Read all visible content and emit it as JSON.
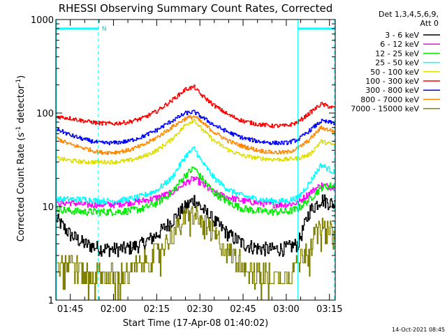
{
  "chart_data": {
    "type": "line",
    "title": "RHESSI Observing Summary Count Rates, Corrected",
    "xlabel": "Start Time (17-Apr-08 01:40:02)",
    "ylabel_main": "Corrected Count Rate (s",
    "ylabel_sup1": "-1",
    "ylabel_mid": " detector",
    "ylabel_sup2": "-1",
    "ylabel_end": ")",
    "yscale": "log",
    "ylim": [
      1,
      1000
    ],
    "xlim_minutes": [
      0,
      97
    ],
    "yticks": [
      {
        "value": 1,
        "label": "1"
      },
      {
        "value": 10,
        "label": "10"
      },
      {
        "value": 100,
        "label": "100"
      },
      {
        "value": 1000,
        "label": "1000"
      }
    ],
    "xticks": [
      {
        "minute": 5,
        "label": "01:45"
      },
      {
        "minute": 20,
        "label": "02:00"
      },
      {
        "minute": 35,
        "label": "02:15"
      },
      {
        "minute": 50,
        "label": "02:30"
      },
      {
        "minute": 65,
        "label": "02:45"
      },
      {
        "minute": 80,
        "label": "03:00"
      },
      {
        "minute": 95,
        "label": "03:15"
      }
    ],
    "legend_header": [
      "Det 1,3,4,5,6,9,",
      "Att 0"
    ],
    "legend_position": "top-right",
    "night_bars": [
      {
        "start": 0,
        "end": 15,
        "label": "N"
      },
      {
        "start": 84,
        "end": 99,
        "label": ""
      }
    ],
    "eclipse_lines_solid": [
      0,
      84
    ],
    "eclipse_lines_dashed": [
      15,
      99
    ],
    "series": [
      {
        "name": "3 - 6 keV",
        "color": "#000000",
        "x": [
          0,
          5,
          10,
          15,
          20,
          25,
          30,
          35,
          40,
          45,
          48,
          50,
          55,
          60,
          65,
          70,
          75,
          80,
          84,
          88,
          92,
          97
        ],
        "values": [
          7.5,
          5,
          4,
          3.6,
          3.5,
          3.6,
          4,
          5,
          7,
          10,
          12,
          10,
          7,
          5,
          4,
          3.6,
          3.5,
          3.6,
          4,
          9,
          12,
          10.5
        ]
      },
      {
        "name": "6 - 12 keV",
        "color": "#ff00ff",
        "x": [
          0,
          5,
          10,
          15,
          20,
          25,
          30,
          35,
          40,
          45,
          48,
          50,
          55,
          60,
          65,
          70,
          75,
          80,
          84,
          88,
          92,
          97
        ],
        "values": [
          11,
          11,
          10.5,
          10.5,
          10.5,
          11,
          11.5,
          12.5,
          14,
          18,
          20,
          18,
          14,
          12.5,
          11.5,
          11,
          10.5,
          10.5,
          11,
          14,
          17,
          16
        ]
      },
      {
        "name": "12 - 25 keV",
        "color": "#00ee00",
        "x": [
          0,
          5,
          10,
          15,
          20,
          25,
          30,
          35,
          40,
          45,
          48,
          50,
          55,
          60,
          65,
          70,
          75,
          80,
          84,
          88,
          92,
          97
        ],
        "values": [
          9.5,
          9,
          8.8,
          8.8,
          8.8,
          9,
          9.5,
          11,
          14,
          22,
          26,
          21,
          14,
          11,
          9.5,
          9,
          8.8,
          8.8,
          9.5,
          12,
          16,
          17
        ]
      },
      {
        "name": "25 - 50 keV",
        "color": "#00ffff",
        "x": [
          0,
          5,
          10,
          15,
          20,
          25,
          30,
          35,
          40,
          45,
          48,
          50,
          55,
          60,
          65,
          70,
          75,
          80,
          84,
          88,
          92,
          97
        ],
        "values": [
          12,
          12,
          12,
          11.5,
          11.5,
          12,
          13,
          15,
          20,
          35,
          42,
          32,
          20,
          15,
          13,
          12,
          11.5,
          11.5,
          12.5,
          18,
          28,
          23
        ]
      },
      {
        "name": "50 - 100 keV",
        "color": "#dddd00",
        "x": [
          0,
          5,
          10,
          15,
          20,
          25,
          30,
          35,
          40,
          45,
          48,
          50,
          55,
          60,
          65,
          70,
          75,
          80,
          84,
          88,
          92,
          97
        ],
        "values": [
          33,
          31,
          30,
          30,
          30,
          31,
          34,
          40,
          52,
          75,
          85,
          70,
          50,
          40,
          35,
          33,
          32,
          32,
          33,
          36,
          50,
          45
        ]
      },
      {
        "name": "100 - 300 keV",
        "color": "#ff0000",
        "x": [
          0,
          5,
          10,
          15,
          20,
          25,
          30,
          35,
          40,
          45,
          48,
          50,
          55,
          60,
          65,
          70,
          75,
          80,
          84,
          88,
          92,
          97
        ],
        "values": [
          92,
          88,
          82,
          78,
          77,
          80,
          88,
          105,
          135,
          180,
          190,
          160,
          120,
          95,
          82,
          76,
          73,
          73,
          80,
          100,
          125,
          112
        ]
      },
      {
        "name": "300 - 800 keV",
        "color": "#0000ff",
        "x": [
          0,
          5,
          10,
          15,
          20,
          25,
          30,
          35,
          40,
          45,
          48,
          50,
          55,
          60,
          65,
          70,
          75,
          80,
          84,
          88,
          92,
          97
        ],
        "values": [
          68,
          58,
          52,
          48,
          48,
          50,
          56,
          66,
          82,
          100,
          103,
          93,
          74,
          62,
          54,
          50,
          48,
          48,
          52,
          65,
          82,
          78
        ]
      },
      {
        "name": "800 - 7000 keV",
        "color": "#ff8800",
        "x": [
          0,
          5,
          10,
          15,
          20,
          25,
          30,
          35,
          40,
          45,
          48,
          50,
          55,
          60,
          65,
          70,
          75,
          80,
          84,
          88,
          92,
          97
        ],
        "values": [
          54,
          46,
          42,
          38,
          38,
          40,
          45,
          55,
          70,
          88,
          92,
          82,
          62,
          50,
          44,
          40,
          38,
          38,
          42,
          52,
          70,
          63
        ]
      },
      {
        "name": "7000 - 15000 keV",
        "color": "#808000",
        "x": [
          0,
          5,
          10,
          15,
          20,
          25,
          30,
          35,
          40,
          45,
          48,
          50,
          55,
          60,
          65,
          70,
          75,
          80,
          84,
          88,
          92,
          97
        ],
        "values": [
          3,
          2.5,
          2,
          1.8,
          1.8,
          2,
          2.5,
          3.2,
          5,
          7.5,
          8.5,
          7,
          5,
          3.2,
          2.5,
          2,
          1.8,
          1.8,
          2.5,
          4,
          6,
          5
        ]
      }
    ]
  },
  "footer_date": "14-Oct-2021 08:45"
}
